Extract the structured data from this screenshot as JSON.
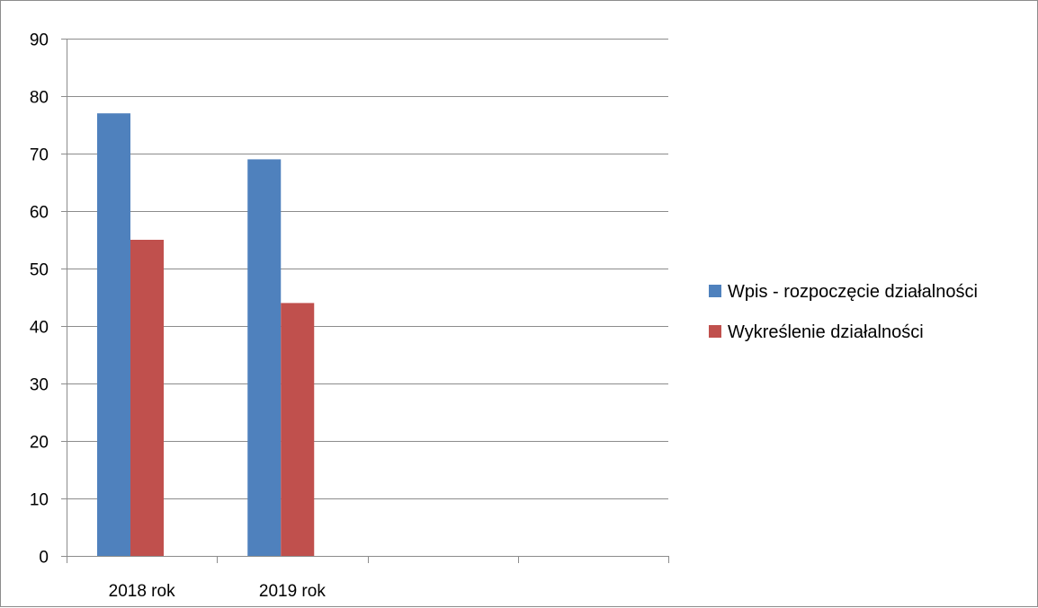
{
  "chart_data": {
    "type": "bar",
    "categories": [
      "2018 rok",
      "2019 rok",
      "",
      ""
    ],
    "series": [
      {
        "name": "Wpis - rozpoczęcie działalności",
        "values": [
          77,
          69,
          null,
          null
        ],
        "color": "#4f81bd"
      },
      {
        "name": "Wykreślenie działalności",
        "values": [
          55,
          44,
          null,
          null
        ],
        "color": "#c0504d"
      }
    ],
    "y_ticks": [
      0,
      10,
      20,
      30,
      40,
      50,
      60,
      70,
      80,
      90
    ],
    "ylim": [
      0,
      90
    ],
    "grid": true,
    "legend_position": "right"
  }
}
